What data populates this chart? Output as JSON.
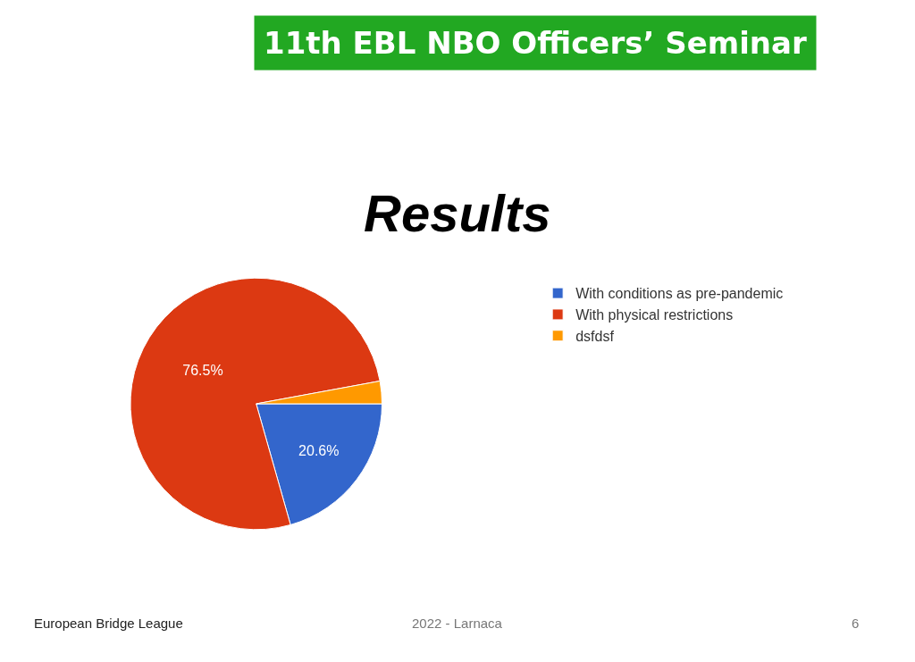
{
  "chart_data": {
    "type": "pie",
    "title": "11th EBL NBO Officers’ Seminar",
    "subtitle": "Results",
    "categories": [
      "With conditions as pre-pandemic",
      "With physical restrictions",
      "dsfdsf"
    ],
    "values": [
      20.6,
      76.5,
      2.9
    ],
    "colors": [
      "#3366cc",
      "#dc3912",
      "#ff9900"
    ],
    "value_labels": [
      "20.6%",
      "76.5%",
      null
    ],
    "legend": "right",
    "annotations": [
      "European Bridge League",
      "2022 - Larnaca",
      "6"
    ]
  }
}
